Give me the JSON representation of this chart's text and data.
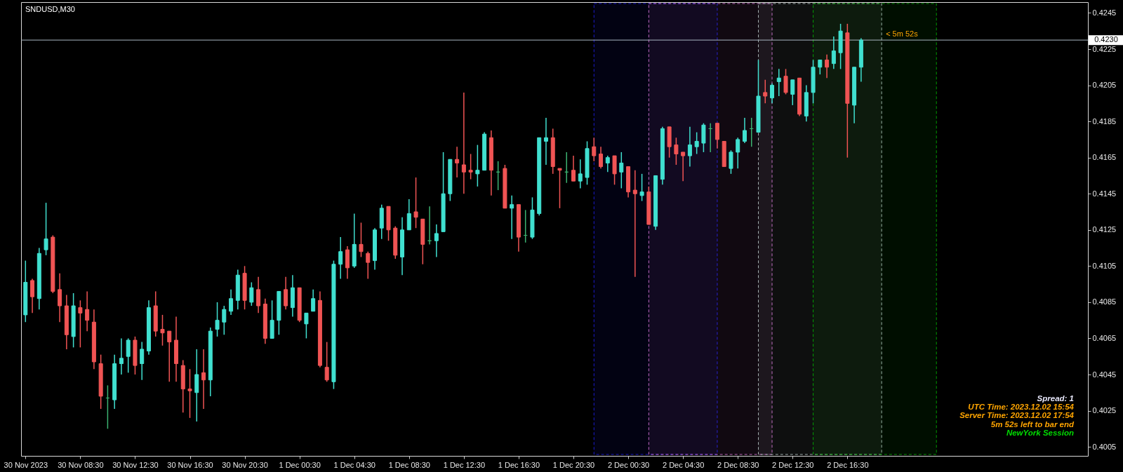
{
  "chart_data": {
    "type": "candlestick",
    "title": "SNDUSD,M30",
    "x": [
      "2023-11-30T04:30",
      "2023-11-30T05:00",
      "2023-11-30T05:30",
      "2023-11-30T06:00",
      "2023-11-30T06:30",
      "2023-11-30T07:00",
      "2023-11-30T07:30",
      "2023-11-30T08:00",
      "2023-11-30T08:30",
      "2023-11-30T09:00",
      "2023-11-30T09:30",
      "2023-11-30T10:00",
      "2023-11-30T10:30",
      "2023-11-30T11:00",
      "2023-11-30T11:30",
      "2023-11-30T12:00",
      "2023-11-30T12:30",
      "2023-11-30T13:00",
      "2023-11-30T13:30",
      "2023-11-30T14:00",
      "2023-11-30T14:30",
      "2023-11-30T15:00",
      "2023-11-30T15:30",
      "2023-11-30T16:00",
      "2023-11-30T16:30",
      "2023-11-30T17:00",
      "2023-11-30T17:30",
      "2023-11-30T18:00",
      "2023-11-30T18:30",
      "2023-11-30T19:00",
      "2023-11-30T19:30",
      "2023-11-30T20:00",
      "2023-11-30T20:30",
      "2023-11-30T21:00",
      "2023-11-30T21:30",
      "2023-11-30T22:00",
      "2023-11-30T22:30",
      "2023-11-30T23:00",
      "2023-11-30T23:30",
      "2023-12-01T00:00",
      "2023-12-01T00:30",
      "2023-12-01T01:00",
      "2023-12-01T01:30",
      "2023-12-01T02:00",
      "2023-12-01T02:30",
      "2023-12-01T03:00",
      "2023-12-01T03:30",
      "2023-12-01T04:00",
      "2023-12-01T04:30",
      "2023-12-01T05:00",
      "2023-12-01T05:30",
      "2023-12-01T06:00",
      "2023-12-01T06:30",
      "2023-12-01T07:00",
      "2023-12-01T07:30",
      "2023-12-01T08:00",
      "2023-12-01T08:30",
      "2023-12-01T09:00",
      "2023-12-01T09:30",
      "2023-12-01T10:00",
      "2023-12-01T10:30",
      "2023-12-01T11:00",
      "2023-12-01T11:30",
      "2023-12-01T12:00",
      "2023-12-01T12:30",
      "2023-12-01T13:00",
      "2023-12-01T13:30",
      "2023-12-01T14:00",
      "2023-12-01T14:30",
      "2023-12-01T15:00",
      "2023-12-01T15:30",
      "2023-12-01T16:00",
      "2023-12-01T16:30",
      "2023-12-01T17:00",
      "2023-12-01T17:30",
      "2023-12-01T18:00",
      "2023-12-01T18:30",
      "2023-12-01T19:00",
      "2023-12-01T19:30",
      "2023-12-01T20:00",
      "2023-12-01T20:30",
      "2023-12-01T21:00",
      "2023-12-01T21:30",
      "2023-12-01T22:00",
      "2023-12-01T22:30",
      "2023-12-01T23:00",
      "2023-12-01T23:30",
      "2023-12-02T00:00",
      "2023-12-02T00:30",
      "2023-12-02T01:00",
      "2023-12-02T01:30",
      "2023-12-02T02:00",
      "2023-12-02T02:30",
      "2023-12-02T03:00",
      "2023-12-02T03:30",
      "2023-12-02T04:00",
      "2023-12-02T04:30",
      "2023-12-02T05:00",
      "2023-12-02T05:30",
      "2023-12-02T06:00",
      "2023-12-02T06:30",
      "2023-12-02T07:00",
      "2023-12-02T07:30",
      "2023-12-02T08:00",
      "2023-12-02T08:30",
      "2023-12-02T09:00",
      "2023-12-02T09:30",
      "2023-12-02T10:00",
      "2023-12-02T10:30",
      "2023-12-02T11:00",
      "2023-12-02T11:30",
      "2023-12-02T12:00",
      "2023-12-02T12:30",
      "2023-12-02T13:00",
      "2023-12-02T13:30",
      "2023-12-02T14:00",
      "2023-12-02T14:30",
      "2023-12-02T15:00",
      "2023-12-02T15:30",
      "2023-12-02T16:00",
      "2023-12-02T16:30",
      "2023-12-02T17:00",
      "2023-12-02T17:30"
    ],
    "ohlc": [
      [
        0.4078,
        0.4108,
        0.4074,
        0.4096
      ],
      [
        0.4097,
        0.4098,
        0.4079,
        0.4088
      ],
      [
        0.4087,
        0.4115,
        0.4081,
        0.4112
      ],
      [
        0.4114,
        0.414,
        0.4111,
        0.412
      ],
      [
        0.4121,
        0.4122,
        0.409,
        0.4091
      ],
      [
        0.4092,
        0.4101,
        0.4074,
        0.4083
      ],
      [
        0.4083,
        0.4089,
        0.4059,
        0.4067
      ],
      [
        0.4066,
        0.409,
        0.406,
        0.4083
      ],
      [
        0.4082,
        0.4086,
        0.406,
        0.4079
      ],
      [
        0.4081,
        0.4091,
        0.4069,
        0.4075
      ],
      [
        0.4074,
        0.4081,
        0.4048,
        0.4052
      ],
      [
        0.4051,
        0.4056,
        0.4026,
        0.4033
      ],
      [
        0.4032,
        0.4039,
        0.4015,
        0.4032
      ],
      [
        0.4031,
        0.4056,
        0.4026,
        0.4051
      ],
      [
        0.4051,
        0.4065,
        0.4045,
        0.4054
      ],
      [
        0.4055,
        0.4065,
        0.4046,
        0.4064
      ],
      [
        0.4064,
        0.4066,
        0.4045,
        0.405
      ],
      [
        0.4051,
        0.4063,
        0.4042,
        0.4059
      ],
      [
        0.4058,
        0.4086,
        0.4056,
        0.4082
      ],
      [
        0.4083,
        0.4091,
        0.4066,
        0.4069
      ],
      [
        0.407,
        0.4078,
        0.4061,
        0.4068
      ],
      [
        0.4069,
        0.4069,
        0.4041,
        0.4063
      ],
      [
        0.4064,
        0.4077,
        0.4041,
        0.4051
      ],
      [
        0.405,
        0.4053,
        0.4024,
        0.4037
      ],
      [
        0.4037,
        0.4048,
        0.4021,
        0.4036
      ],
      [
        0.4035,
        0.4059,
        0.4019,
        0.4045
      ],
      [
        0.4046,
        0.4059,
        0.4026,
        0.4042
      ],
      [
        0.4042,
        0.4071,
        0.4033,
        0.4069
      ],
      [
        0.407,
        0.4085,
        0.4066,
        0.4075
      ],
      [
        0.4074,
        0.4083,
        0.4067,
        0.4081
      ],
      [
        0.408,
        0.4092,
        0.4078,
        0.4087
      ],
      [
        0.4086,
        0.4103,
        0.4081,
        0.41
      ],
      [
        0.4101,
        0.4105,
        0.4081,
        0.4086
      ],
      [
        0.4085,
        0.4096,
        0.4083,
        0.4093
      ],
      [
        0.4092,
        0.4099,
        0.4079,
        0.4083
      ],
      [
        0.4084,
        0.4087,
        0.4062,
        0.4065
      ],
      [
        0.4065,
        0.4086,
        0.4065,
        0.4075
      ],
      [
        0.4075,
        0.4091,
        0.4067,
        0.4091
      ],
      [
        0.4092,
        0.4099,
        0.4081,
        0.4083
      ],
      [
        0.4082,
        0.41,
        0.4077,
        0.4093
      ],
      [
        0.4093,
        0.4093,
        0.4074,
        0.4075
      ],
      [
        0.4073,
        0.4079,
        0.4065,
        0.4079
      ],
      [
        0.408,
        0.4092,
        0.408,
        0.4087
      ],
      [
        0.4086,
        0.4091,
        0.4049,
        0.405
      ],
      [
        0.4049,
        0.4063,
        0.4041,
        0.4042
      ],
      [
        0.4041,
        0.4108,
        0.4037,
        0.4106
      ],
      [
        0.4106,
        0.4121,
        0.4098,
        0.4113
      ],
      [
        0.4114,
        0.4116,
        0.4098,
        0.4104
      ],
      [
        0.4105,
        0.4134,
        0.4104,
        0.4117
      ],
      [
        0.4117,
        0.4129,
        0.411,
        0.4113
      ],
      [
        0.4112,
        0.4113,
        0.4098,
        0.4107
      ],
      [
        0.4108,
        0.4126,
        0.4103,
        0.4125
      ],
      [
        0.4126,
        0.4139,
        0.412,
        0.4137
      ],
      [
        0.4138,
        0.4138,
        0.4119,
        0.4125
      ],
      [
        0.4126,
        0.4127,
        0.4109,
        0.4111
      ],
      [
        0.411,
        0.4132,
        0.41,
        0.4125
      ],
      [
        0.4125,
        0.4142,
        0.4125,
        0.4134
      ],
      [
        0.4135,
        0.4154,
        0.4126,
        0.4132
      ],
      [
        0.4131,
        0.4131,
        0.4106,
        0.4117
      ],
      [
        0.4119,
        0.4138,
        0.4117,
        0.4119
      ],
      [
        0.4119,
        0.4128,
        0.411,
        0.4123
      ],
      [
        0.4124,
        0.4168,
        0.4124,
        0.4145
      ],
      [
        0.4145,
        0.4164,
        0.4141,
        0.4164
      ],
      [
        0.4164,
        0.4171,
        0.4154,
        0.4162
      ],
      [
        0.4161,
        0.4201,
        0.4145,
        0.4157
      ],
      [
        0.4158,
        0.4167,
        0.4153,
        0.4157
      ],
      [
        0.4156,
        0.4172,
        0.4149,
        0.4158
      ],
      [
        0.4158,
        0.4179,
        0.4158,
        0.4178
      ],
      [
        0.4176,
        0.418,
        0.4144,
        0.4158
      ],
      [
        0.4157,
        0.4163,
        0.4147,
        0.4157
      ],
      [
        0.4159,
        0.4161,
        0.4137,
        0.4137
      ],
      [
        0.4137,
        0.4144,
        0.412,
        0.4139
      ],
      [
        0.4139,
        0.4139,
        0.4113,
        0.4121
      ],
      [
        0.4122,
        0.4136,
        0.4118,
        0.4122
      ],
      [
        0.4121,
        0.4143,
        0.412,
        0.4136
      ],
      [
        0.4134,
        0.4176,
        0.4133,
        0.4176
      ],
      [
        0.4174,
        0.4187,
        0.4161,
        0.4176
      ],
      [
        0.4176,
        0.4181,
        0.4156,
        0.416
      ],
      [
        0.4159,
        0.4159,
        0.4137,
        0.4158
      ],
      [
        0.4157,
        0.4168,
        0.4151,
        0.4157
      ],
      [
        0.4158,
        0.4166,
        0.4152,
        0.4152
      ],
      [
        0.4152,
        0.4164,
        0.4148,
        0.4156
      ],
      [
        0.4154,
        0.4174,
        0.415,
        0.417
      ],
      [
        0.4171,
        0.4176,
        0.4163,
        0.4166
      ],
      [
        0.4167,
        0.4171,
        0.4159,
        0.416
      ],
      [
        0.4162,
        0.4166,
        0.4157,
        0.4165
      ],
      [
        0.4166,
        0.4166,
        0.415,
        0.4156
      ],
      [
        0.4157,
        0.4168,
        0.4148,
        0.4162
      ],
      [
        0.416,
        0.416,
        0.4143,
        0.4146
      ],
      [
        0.4147,
        0.4158,
        0.4099,
        0.4145
      ],
      [
        0.4144,
        0.4156,
        0.4141,
        0.4146
      ],
      [
        0.4146,
        0.4149,
        0.4128,
        0.4128
      ],
      [
        0.4127,
        0.4155,
        0.4125,
        0.4155
      ],
      [
        0.4153,
        0.4182,
        0.415,
        0.4181
      ],
      [
        0.4182,
        0.4182,
        0.4165,
        0.4171
      ],
      [
        0.4172,
        0.4176,
        0.4161,
        0.4167
      ],
      [
        0.4168,
        0.4168,
        0.4152,
        0.4166
      ],
      [
        0.4166,
        0.4182,
        0.416,
        0.4172
      ],
      [
        0.4171,
        0.4179,
        0.4167,
        0.4174
      ],
      [
        0.4173,
        0.4184,
        0.4168,
        0.4183
      ],
      [
        0.4181,
        0.4184,
        0.4168,
        0.4181
      ],
      [
        0.4184,
        0.4184,
        0.417,
        0.4175
      ],
      [
        0.4174,
        0.4174,
        0.416,
        0.416
      ],
      [
        0.4159,
        0.4169,
        0.4156,
        0.4168
      ],
      [
        0.4168,
        0.4176,
        0.4159,
        0.4175
      ],
      [
        0.4174,
        0.4187,
        0.4173,
        0.418
      ],
      [
        0.4181,
        0.4187,
        0.4171,
        0.4181
      ],
      [
        0.4179,
        0.4219,
        0.4179,
        0.4199
      ],
      [
        0.4201,
        0.4208,
        0.4195,
        0.4199
      ],
      [
        0.4198,
        0.4206,
        0.4195,
        0.4205
      ],
      [
        0.4207,
        0.4214,
        0.4199,
        0.4209
      ],
      [
        0.421,
        0.4214,
        0.42,
        0.4201
      ],
      [
        0.42,
        0.4208,
        0.4194,
        0.4208
      ],
      [
        0.4209,
        0.4209,
        0.4188,
        0.4189
      ],
      [
        0.4188,
        0.4205,
        0.4185,
        0.4201
      ],
      [
        0.4201,
        0.4219,
        0.4195,
        0.4215
      ],
      [
        0.4215,
        0.4219,
        0.4211,
        0.4219
      ],
      [
        0.4219,
        0.4222,
        0.4209,
        0.4215
      ],
      [
        0.4217,
        0.4232,
        0.4214,
        0.4224
      ],
      [
        0.4223,
        0.4239,
        0.4214,
        0.4235
      ],
      [
        0.4234,
        0.4239,
        0.4165,
        0.4195
      ],
      [
        0.4194,
        0.4215,
        0.4184,
        0.4215
      ],
      [
        0.4215,
        0.4231,
        0.4207,
        0.423
      ]
    ],
    "colors": [
      "#40e0d0",
      "#f05454",
      "#40e0d0",
      "#40e0d0",
      "#f05454",
      "#f05454",
      "#f05454",
      "#40e0d0",
      "#f05454",
      "#f05454",
      "#f05454",
      "#f05454",
      "#3cb371",
      "#40e0d0",
      "#40e0d0",
      "#40e0d0",
      "#f05454",
      "#40e0d0",
      "#40e0d0",
      "#f05454",
      "#f05454",
      "#f05454",
      "#f05454",
      "#f05454",
      "#f05454",
      "#40e0d0",
      "#f05454",
      "#40e0d0",
      "#40e0d0",
      "#40e0d0",
      "#40e0d0",
      "#40e0d0",
      "#f05454",
      "#40e0d0",
      "#f05454",
      "#f05454",
      "#40e0d0",
      "#40e0d0",
      "#f05454",
      "#40e0d0",
      "#f05454",
      "#40e0d0",
      "#40e0d0",
      "#f05454",
      "#f05454",
      "#40e0d0",
      "#40e0d0",
      "#f05454",
      "#40e0d0",
      "#f05454",
      "#f05454",
      "#40e0d0",
      "#40e0d0",
      "#f05454",
      "#f05454",
      "#40e0d0",
      "#40e0d0",
      "#f05454",
      "#f05454",
      "#3cb371",
      "#40e0d0",
      "#40e0d0",
      "#40e0d0",
      "#f05454",
      "#f05454",
      "#f05454",
      "#40e0d0",
      "#40e0d0",
      "#f05454",
      "#3cb371",
      "#f05454",
      "#40e0d0",
      "#f05454",
      "#3cb371",
      "#40e0d0",
      "#40e0d0",
      "#40e0d0",
      "#f05454",
      "#f05454",
      "#3cb371",
      "#f05454",
      "#40e0d0",
      "#40e0d0",
      "#f05454",
      "#f05454",
      "#40e0d0",
      "#f05454",
      "#40e0d0",
      "#f05454",
      "#f05454",
      "#40e0d0",
      "#f05454",
      "#40e0d0",
      "#40e0d0",
      "#f05454",
      "#f05454",
      "#f05454",
      "#40e0d0",
      "#40e0d0",
      "#40e0d0",
      "#3cb371",
      "#f05454",
      "#f05454",
      "#40e0d0",
      "#40e0d0",
      "#40e0d0",
      "#3cb371",
      "#40e0d0",
      "#f05454",
      "#40e0d0",
      "#40e0d0",
      "#f05454",
      "#40e0d0",
      "#f05454",
      "#40e0d0",
      "#40e0d0",
      "#40e0d0",
      "#f05454",
      "#40e0d0",
      "#40e0d0",
      "#f05454",
      "#40e0d0",
      "#40e0d0"
    ],
    "xlim": [
      "2023-11-30T04:26",
      "2023-12-03T09:48"
    ],
    "xticks": [
      {
        "value": "2023-11-30T04:30",
        "label": "30 Nov 2023"
      },
      {
        "value": "2023-11-30T08:30",
        "label": "30 Nov 08:30"
      },
      {
        "value": "2023-11-30T12:30",
        "label": "30 Nov 12:30"
      },
      {
        "value": "2023-11-30T16:30",
        "label": "30 Nov 16:30"
      },
      {
        "value": "2023-11-30T20:30",
        "label": "30 Nov 20:30"
      },
      {
        "value": "2023-12-01T00:30",
        "label": "1 Dec 00:30"
      },
      {
        "value": "2023-12-01T04:30",
        "label": "1 Dec 04:30"
      },
      {
        "value": "2023-12-01T08:30",
        "label": "1 Dec 08:30"
      },
      {
        "value": "2023-12-01T12:30",
        "label": "1 Dec 12:30"
      },
      {
        "value": "2023-12-01T16:30",
        "label": "1 Dec 16:30"
      },
      {
        "value": "2023-12-01T20:30",
        "label": "1 Dec 20:30"
      },
      {
        "value": "2023-12-02T00:30",
        "label": "2 Dec 00:30"
      },
      {
        "value": "2023-12-02T04:30",
        "label": "2 Dec 04:30"
      },
      {
        "value": "2023-12-02T08:30",
        "label": "2 Dec 08:30"
      },
      {
        "value": "2023-12-02T12:30",
        "label": "2 Dec 12:30"
      },
      {
        "value": "2023-12-02T16:30",
        "label": "2 Dec 16:30"
      }
    ],
    "ylim": [
      0.4,
      0.4251
    ],
    "yticks": [
      0.4005,
      0.4025,
      0.4045,
      0.4065,
      0.4085,
      0.4105,
      0.4125,
      0.4145,
      0.4165,
      0.4185,
      0.4205,
      0.4225,
      0.4245
    ],
    "ref_lines": [
      {
        "axis": "y",
        "value": 0.423,
        "label": "0.4230",
        "color": "#aab6c2"
      }
    ],
    "bands": [
      {
        "axis": "x",
        "from": "2023-12-01T22:00",
        "to": "2023-12-02T07:00",
        "color": "#2020ff"
      },
      {
        "axis": "x",
        "from": "2023-12-02T02:00",
        "to": "2023-12-02T11:00",
        "color": "#ee82ee"
      },
      {
        "axis": "x",
        "from": "2023-12-02T10:00",
        "to": "2023-12-02T19:00",
        "color": "#c8d8d8"
      },
      {
        "axis": "x",
        "from": "2023-12-02T14:00",
        "to": "2023-12-02T23:00",
        "color": "#00c000"
      }
    ],
    "annotations": [
      {
        "text": "< 5m 52s",
        "x": "2023-12-02T19:00",
        "y": 0.423
      },
      "Spread: 1",
      "UTC Time: 2023.12.02 15:54",
      "Server Time: 2023.12.02 17:54",
      "5m 52s left to bar end",
      "NewYork Session"
    ],
    "grid": false
  }
}
